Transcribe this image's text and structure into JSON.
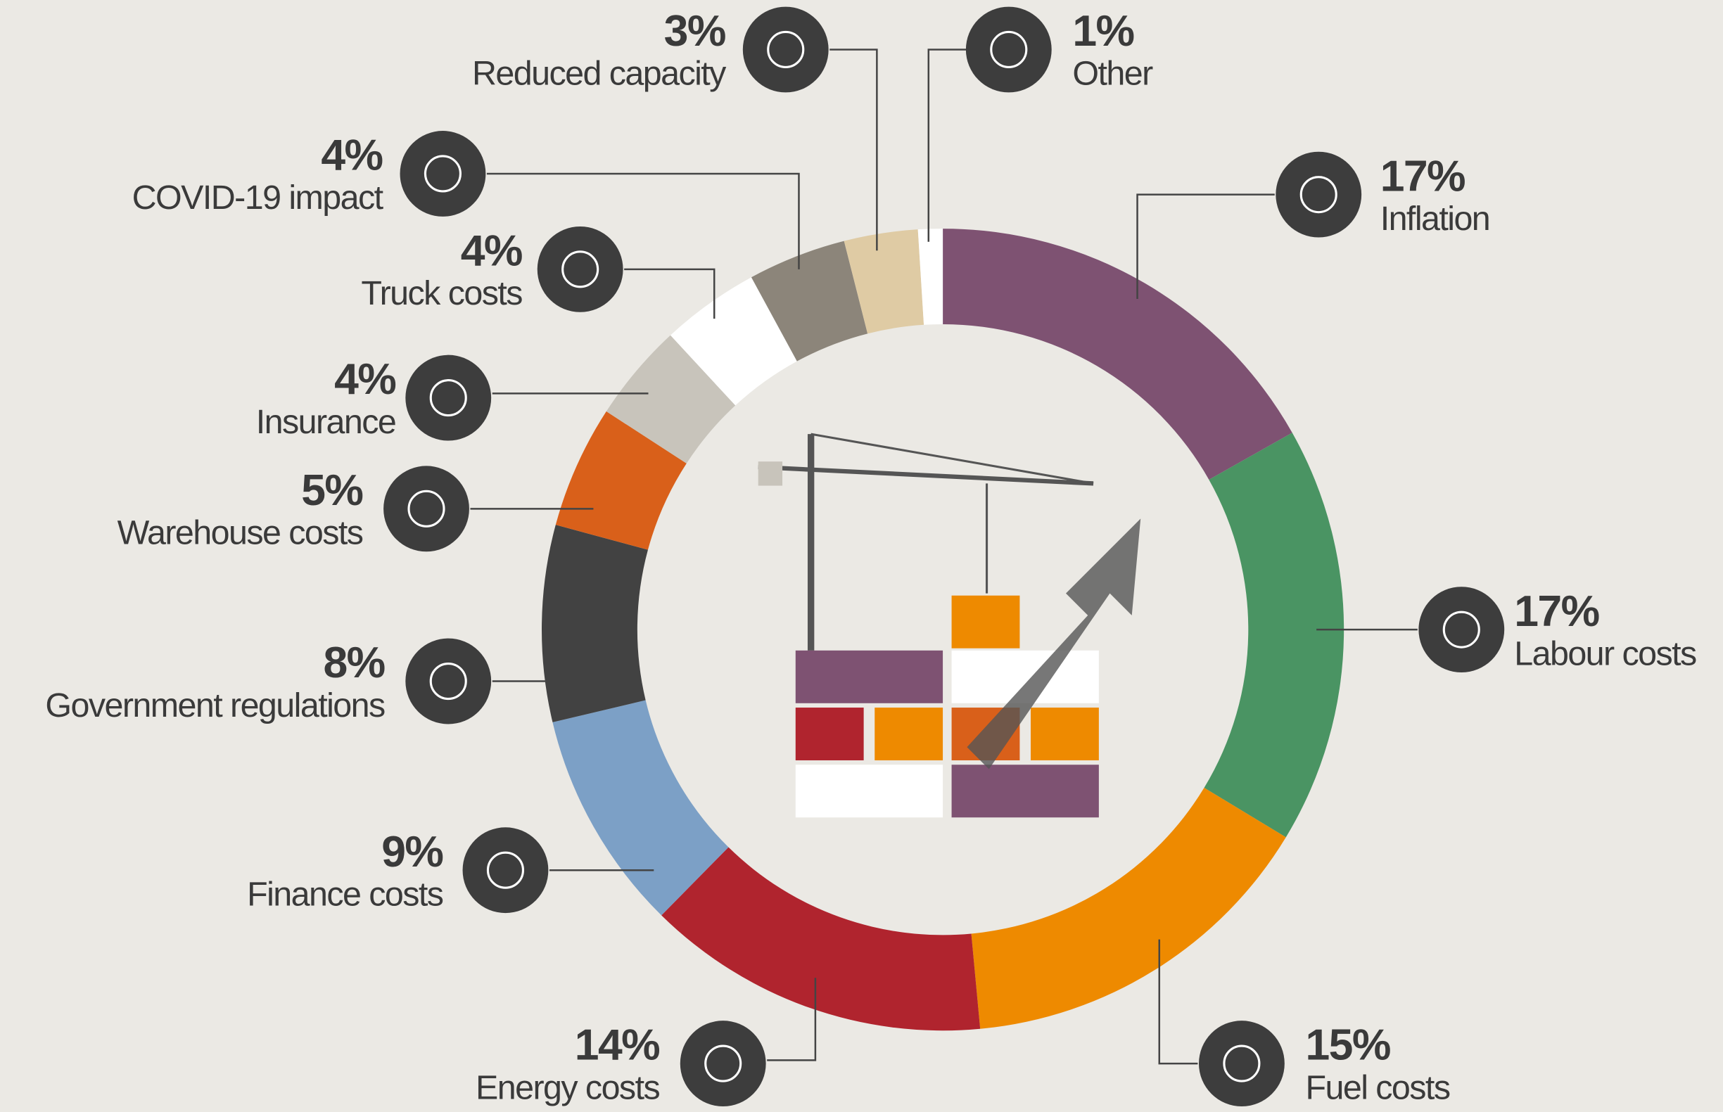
{
  "chart_data": {
    "type": "donut",
    "categories": [
      "Inflation",
      "Labour costs",
      "Fuel costs",
      "Energy costs",
      "Finance costs",
      "Government regulations",
      "Warehouse costs",
      "Insurance",
      "Truck costs",
      "COVID-19 impact",
      "Reduced capacity",
      "Other"
    ],
    "values": [
      17,
      17,
      15,
      14,
      9,
      8,
      5,
      4,
      4,
      4,
      3,
      1
    ],
    "value_labels": [
      "17%",
      "17%",
      "15%",
      "14%",
      "9%",
      "8%",
      "5%",
      "4%",
      "4%",
      "4%",
      "3%",
      "1%"
    ],
    "colors": [
      "#7e5272",
      "#4a9463",
      "#ee8a00",
      "#b0242e",
      "#7ca0c6",
      "#424242",
      "#d9601a",
      "#c8c4bb",
      "#ffffff",
      "#8c857a",
      "#dfcba4",
      "#ffffff"
    ]
  }
}
